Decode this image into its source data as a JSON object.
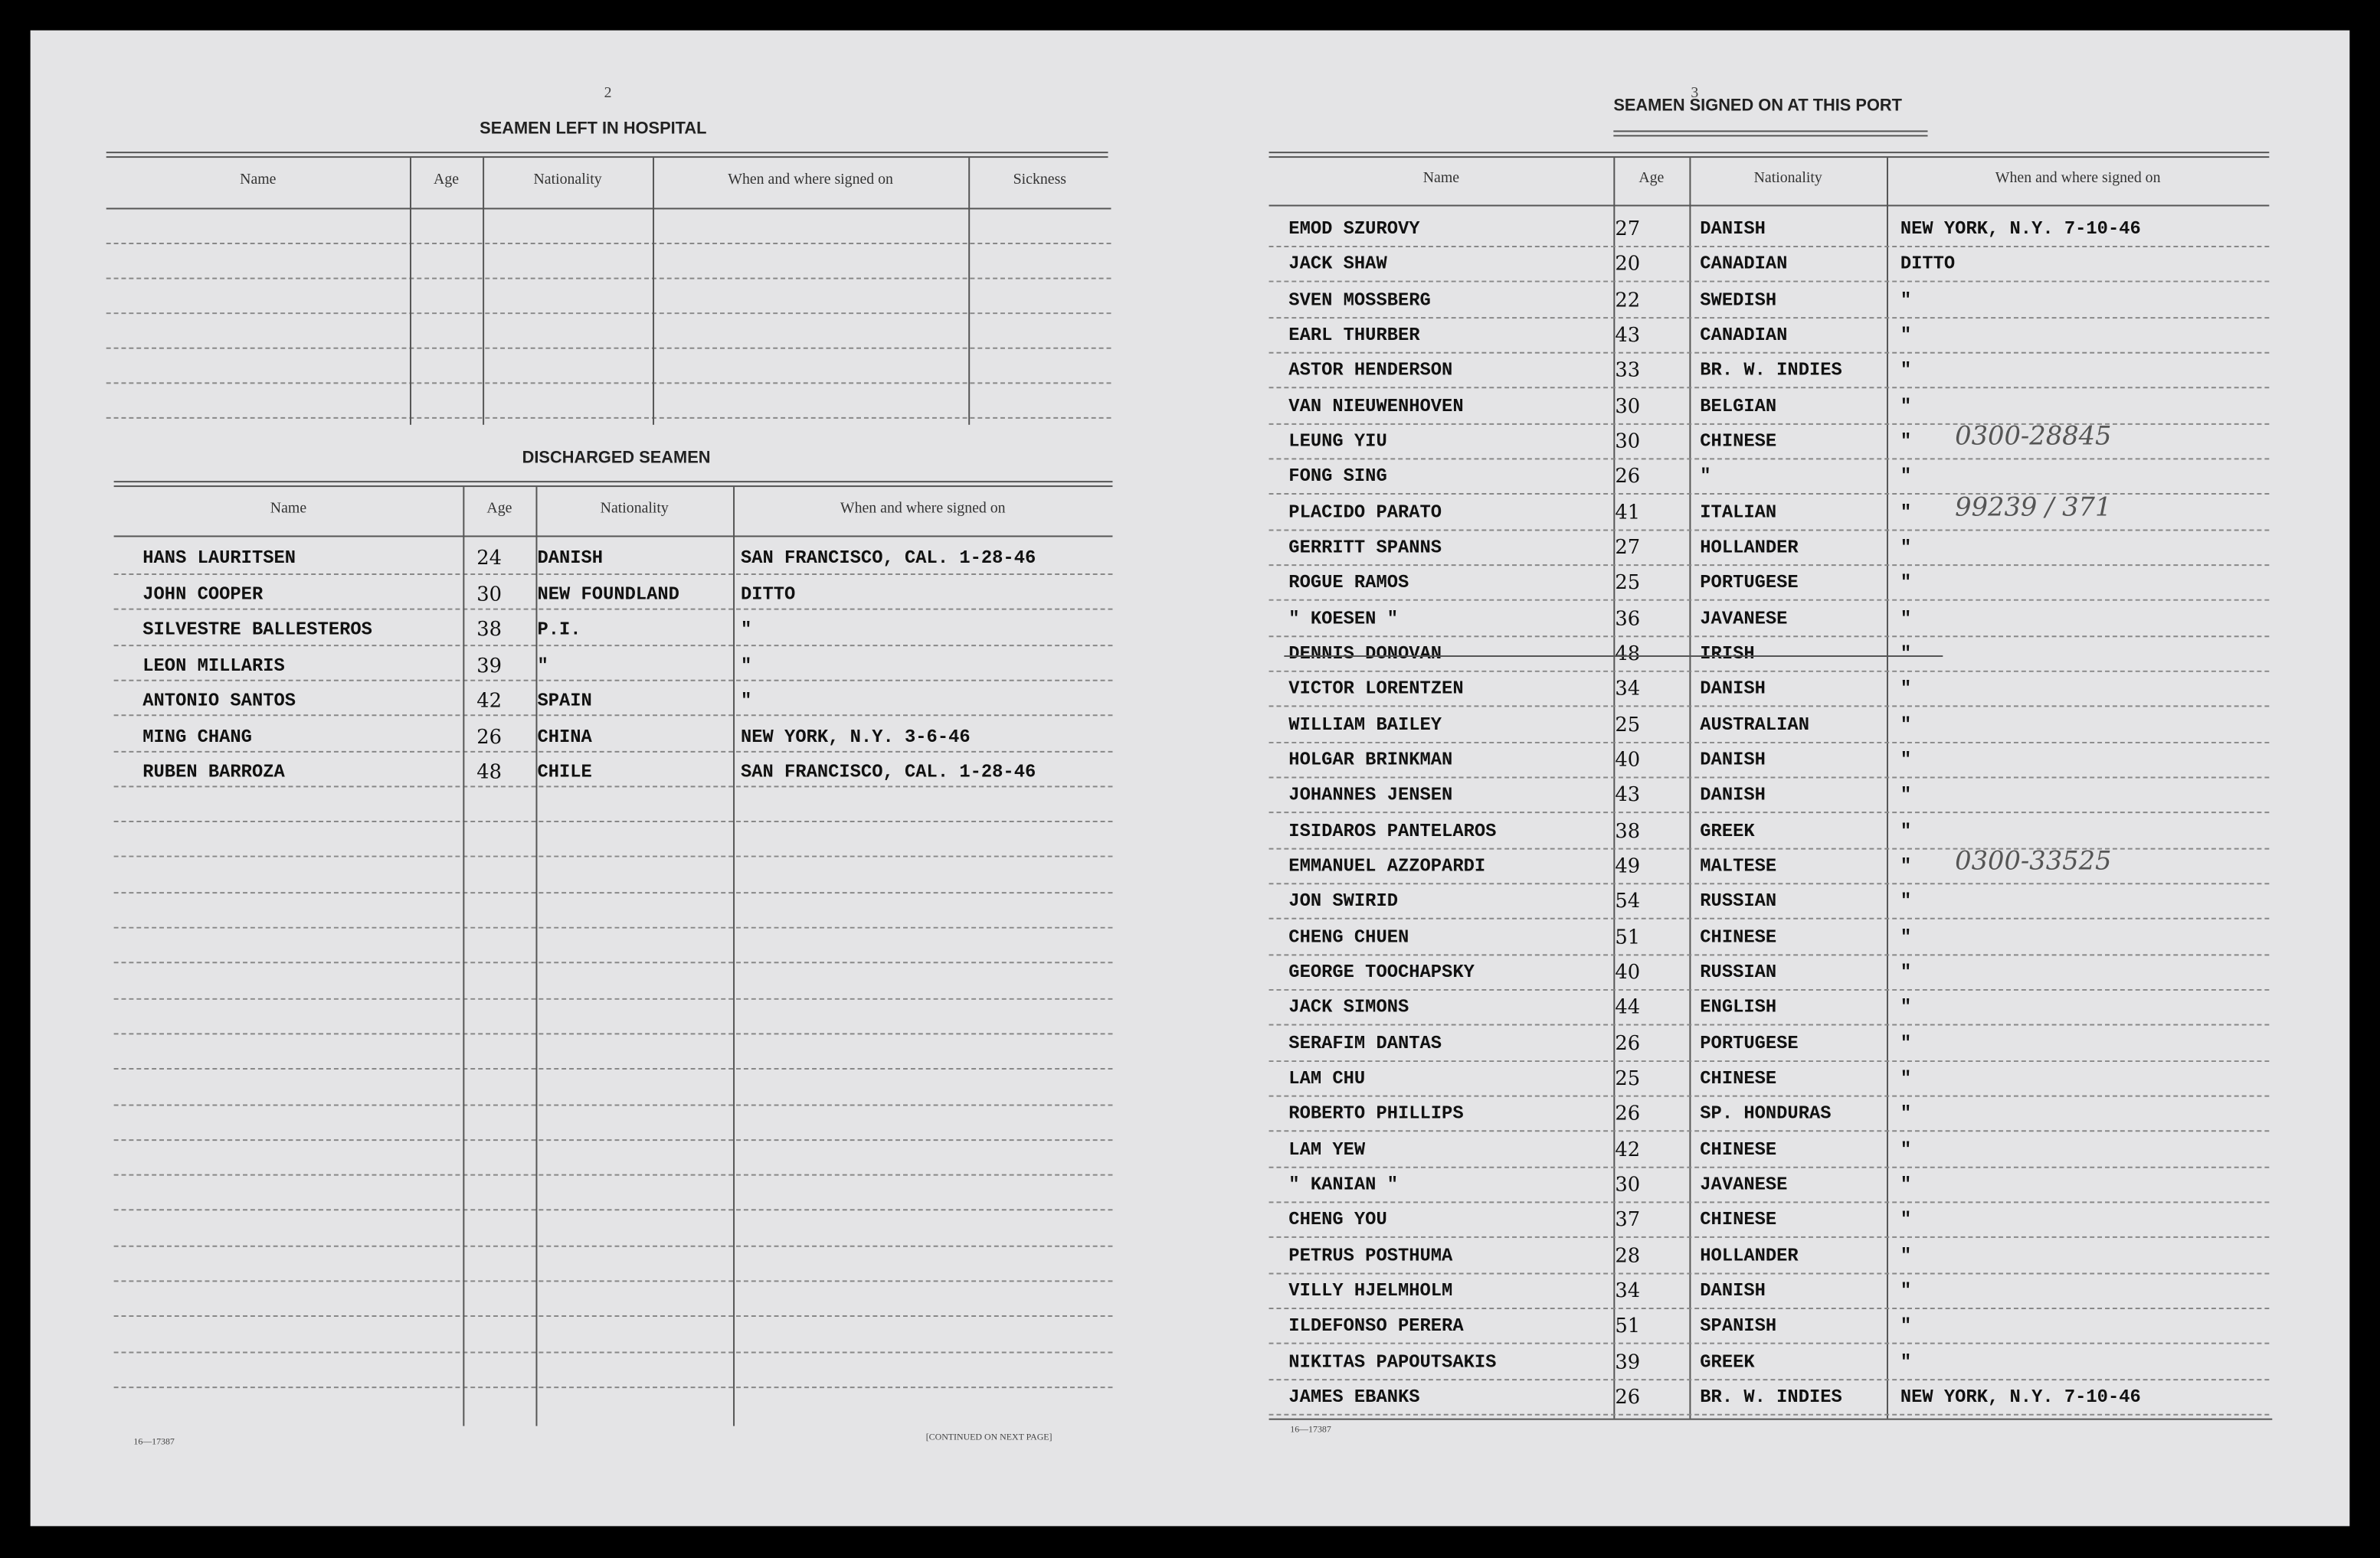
{
  "left_page": {
    "page_number": "2",
    "hospital": {
      "title": "SEAMEN LEFT IN HOSPITAL",
      "columns": [
        "Name",
        "Age",
        "Nationality",
        "When and where signed on",
        "Sickness"
      ]
    },
    "discharged": {
      "title": "DISCHARGED SEAMEN",
      "columns": [
        "Name",
        "Age",
        "Nationality",
        "When and where signed on"
      ],
      "rows": [
        [
          "HANS LAURITSEN",
          24,
          "DANISH",
          "SAN FRANCISCO, CAL. 1-28-46"
        ],
        [
          "JOHN COOPER",
          30,
          "NEW FOUNDLAND",
          "DITTO"
        ],
        [
          "SILVESTRE BALLESTEROS",
          38,
          "P.I.",
          "\""
        ],
        [
          "LEON MILLARIS",
          39,
          "\"",
          "\""
        ],
        [
          "ANTONIO SANTOS",
          42,
          "SPAIN",
          "\""
        ],
        [
          "MING CHANG",
          26,
          "CHINA",
          "NEW YORK, N.Y.  3-6-46"
        ],
        [
          "RUBEN BARROZA",
          48,
          "CHILE",
          "SAN FRANCISCO, CAL. 1-28-46"
        ]
      ]
    },
    "form_number": "16—17387",
    "footer": "[CONTINUED ON NEXT PAGE]"
  },
  "right_page": {
    "page_number": "3",
    "title": "SEAMEN SIGNED ON AT THIS PORT",
    "columns": [
      "Name",
      "Age",
      "Nationality",
      "When and where signed on"
    ],
    "rows": [
      {
        "name": "EMOD SZUROVY",
        "age": 27,
        "nationality": "DANISH",
        "signed_on": "NEW YORK, N.Y.  7-10-46"
      },
      {
        "name": "JACK SHAW",
        "age": 20,
        "nationality": "CANADIAN",
        "signed_on": "DITTO"
      },
      {
        "name": "SVEN MOSSBERG",
        "age": 22,
        "nationality": "SWEDISH",
        "signed_on": "\""
      },
      {
        "name": "EARL THURBER",
        "age": 43,
        "nationality": "CANADIAN",
        "signed_on": "\""
      },
      {
        "name": "ASTOR HENDERSON",
        "age": 33,
        "nationality": "BR. W. INDIES",
        "signed_on": "\""
      },
      {
        "name": "VAN NIEUWENHOVEN",
        "age": 30,
        "nationality": "BELGIAN",
        "signed_on": "\""
      },
      {
        "name": "LEUNG YIU",
        "age": 30,
        "nationality": "CHINESE",
        "signed_on": "\"",
        "note": "0300-28845"
      },
      {
        "name": "FONG SING",
        "age": 26,
        "nationality": "\"",
        "signed_on": "\""
      },
      {
        "name": "PLACIDO PARATO",
        "age": 41,
        "nationality": "ITALIAN",
        "signed_on": "\"",
        "note": "99239 / 371"
      },
      {
        "name": "GERRITT SPANNS",
        "age": 27,
        "nationality": "HOLLANDER",
        "signed_on": "\""
      },
      {
        "name": "ROGUE RAMOS",
        "age": 25,
        "nationality": "PORTUGESE",
        "signed_on": "\""
      },
      {
        "name": "\" KOESEN \"",
        "age": 36,
        "nationality": "JAVANESE",
        "signed_on": "\""
      },
      {
        "name": "DENNIS DONOVAN",
        "age": 48,
        "nationality": "IRISH",
        "signed_on": "\"",
        "struck": true
      },
      {
        "name": "VICTOR LORENTZEN",
        "age": 34,
        "nationality": "DANISH",
        "signed_on": "\""
      },
      {
        "name": "WILLIAM BAILEY",
        "age": 25,
        "nationality": "AUSTRALIAN",
        "signed_on": "\""
      },
      {
        "name": "HOLGAR BRINKMAN",
        "age": 40,
        "nationality": "DANISH",
        "signed_on": "\""
      },
      {
        "name": "JOHANNES JENSEN",
        "age": 43,
        "nationality": "DANISH",
        "signed_on": "\""
      },
      {
        "name": "ISIDAROS PANTELAROS",
        "age": 38,
        "nationality": "GREEK",
        "signed_on": "\""
      },
      {
        "name": "EMMANUEL AZZOPARDI",
        "age": 49,
        "nationality": "MALTESE",
        "signed_on": "\"",
        "note": "0300-33525"
      },
      {
        "name": "JON SWIRID",
        "age": 54,
        "nationality": "RUSSIAN",
        "signed_on": "\""
      },
      {
        "name": "CHENG CHUEN",
        "age": 51,
        "nationality": "CHINESE",
        "signed_on": "\""
      },
      {
        "name": "GEORGE TOOCHAPSKY",
        "age": 40,
        "nationality": "RUSSIAN",
        "signed_on": "\""
      },
      {
        "name": "JACK SIMONS",
        "age": 44,
        "nationality": "ENGLISH",
        "signed_on": "\""
      },
      {
        "name": "SERAFIM DANTAS",
        "age": 26,
        "nationality": "PORTUGESE",
        "signed_on": "\""
      },
      {
        "name": "LAM CHU",
        "age": 25,
        "nationality": "CHINESE",
        "signed_on": "\""
      },
      {
        "name": "ROBERTO PHILLIPS",
        "age": 26,
        "nationality": "SP. HONDURAS",
        "signed_on": "\""
      },
      {
        "name": "LAM YEW",
        "age": 42,
        "nationality": "CHINESE",
        "signed_on": "\""
      },
      {
        "name": "\" KANIAN \"",
        "age": 30,
        "nationality": "JAVANESE",
        "signed_on": "\""
      },
      {
        "name": "CHENG YOU",
        "age": 37,
        "nationality": "CHINESE",
        "signed_on": "\""
      },
      {
        "name": "PETRUS POSTHUMA",
        "age": 28,
        "nationality": "HOLLANDER",
        "signed_on": "\""
      },
      {
        "name": "VILLY HJELMHOLM",
        "age": 34,
        "nationality": "DANISH",
        "signed_on": "\""
      },
      {
        "name": "ILDEFONSO PERERA",
        "age": 51,
        "nationality": "SPANISH",
        "signed_on": "\""
      },
      {
        "name": "NIKITAS PAPOUTSAKIS",
        "age": 39,
        "nationality": "GREEK",
        "signed_on": "\""
      },
      {
        "name": "JAMES EBANKS",
        "age": 26,
        "nationality": "BR. W. INDIES",
        "signed_on": "NEW YORK, N.Y.  7-10-46"
      }
    ],
    "form_number": "16—17387"
  }
}
